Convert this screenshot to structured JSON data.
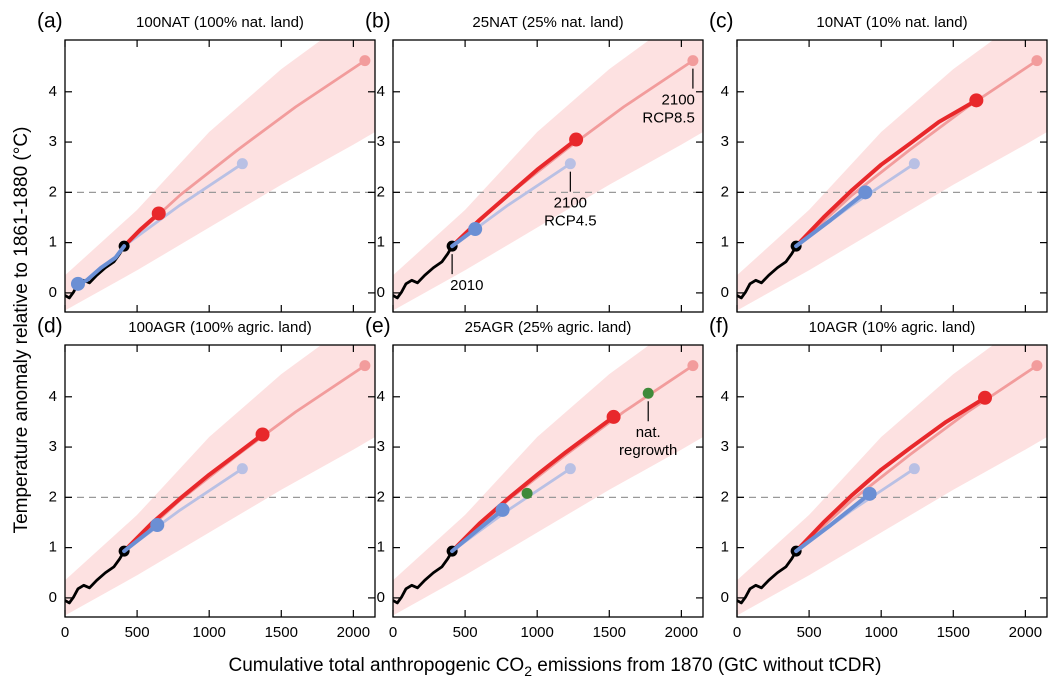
{
  "y_label": "Temperature anomaly relative to 1861-1880 (°C)",
  "x_label": {
    "before": "Cumulative total anthropogenic CO",
    "sub": "2",
    "after": " emissions from 1870 (GtC without tCDR)"
  },
  "chart_data": [
    {
      "type": "line",
      "panel_label": "(a)",
      "title": "100NAT (100% nat. land)",
      "xlim": [
        0,
        2150
      ],
      "ylim": [
        -0.38,
        5.03
      ],
      "xticks": [
        0,
        500,
        1000,
        1500,
        2000
      ],
      "yticks": [
        0,
        1,
        2,
        3,
        4
      ],
      "show_xtick_labels": false,
      "reference_line": 2,
      "band": {
        "color": "#fde1e1",
        "x": [
          0,
          500,
          1000,
          1500,
          2000,
          2150
        ],
        "lower": [
          -0.35,
          0.45,
          1.3,
          2.15,
          2.95,
          3.2
        ],
        "upper": [
          0.35,
          1.65,
          3.2,
          4.45,
          5.5,
          5.8
        ]
      },
      "series": [
        {
          "color": "#f29c9c",
          "weight": "normal",
          "marker": "end",
          "x": [
            410,
            800,
            1200,
            1600,
            2080
          ],
          "values": [
            0.93,
            1.95,
            2.85,
            3.7,
            4.62
          ]
        },
        {
          "color": "#b9c0e4",
          "weight": "normal",
          "marker": "end",
          "x": [
            410,
            800,
            1230
          ],
          "values": [
            0.93,
            1.75,
            2.57
          ]
        },
        {
          "color": "#e8282b",
          "weight": "bold",
          "marker": "end",
          "x": [
            410,
            520,
            650
          ],
          "values": [
            0.93,
            1.25,
            1.58
          ]
        },
        {
          "color": "#000000",
          "weight": "normal",
          "marker": "end",
          "x": [
            0,
            30,
            60,
            90,
            130,
            170,
            220,
            280,
            340,
            380,
            410
          ],
          "values": [
            -0.05,
            -0.1,
            0.02,
            0.18,
            0.25,
            0.2,
            0.35,
            0.5,
            0.62,
            0.78,
            0.93
          ]
        },
        {
          "color": "#6b8fd4",
          "weight": "bold",
          "marker": "end",
          "x": [
            410,
            350,
            300,
            250,
            150,
            90
          ],
          "values": [
            0.93,
            0.7,
            0.6,
            0.5,
            0.25,
            0.18
          ]
        }
      ],
      "annotations": []
    },
    {
      "type": "line",
      "panel_label": "(b)",
      "title": "25NAT (25% nat. land)",
      "xlim": [
        0,
        2150
      ],
      "ylim": [
        -0.38,
        5.03
      ],
      "xticks": [
        0,
        500,
        1000,
        1500,
        2000
      ],
      "yticks": [
        0,
        1,
        2,
        3,
        4
      ],
      "show_xtick_labels": false,
      "reference_line": 2,
      "band": {
        "color": "#fde1e1",
        "x": [
          0,
          500,
          1000,
          1500,
          2000,
          2150
        ],
        "lower": [
          -0.35,
          0.45,
          1.3,
          2.15,
          2.95,
          3.2
        ],
        "upper": [
          0.35,
          1.65,
          3.2,
          4.45,
          5.5,
          5.8
        ]
      },
      "series": [
        {
          "color": "#f29c9c",
          "weight": "normal",
          "marker": "end",
          "x": [
            410,
            800,
            1200,
            1600,
            2080
          ],
          "values": [
            0.93,
            1.95,
            2.85,
            3.7,
            4.62
          ]
        },
        {
          "color": "#b9c0e4",
          "weight": "normal",
          "marker": "end",
          "x": [
            410,
            800,
            1230
          ],
          "values": [
            0.93,
            1.75,
            2.57
          ]
        },
        {
          "color": "#e8282b",
          "weight": "bold",
          "marker": "end",
          "x": [
            410,
            600,
            800,
            1000,
            1270
          ],
          "values": [
            0.93,
            1.45,
            1.95,
            2.45,
            3.05
          ]
        },
        {
          "color": "#000000",
          "weight": "normal",
          "marker": "end",
          "x": [
            0,
            30,
            60,
            90,
            130,
            170,
            220,
            280,
            340,
            380,
            410
          ],
          "values": [
            -0.05,
            -0.1,
            0.02,
            0.18,
            0.25,
            0.2,
            0.35,
            0.5,
            0.62,
            0.78,
            0.93
          ]
        },
        {
          "color": "#6b8fd4",
          "weight": "bold",
          "marker": "end",
          "x": [
            410,
            570
          ],
          "values": [
            0.93,
            1.27
          ]
        }
      ],
      "annotations": [
        {
          "text": [
            "2010"
          ],
          "x": 410,
          "y": 0.93,
          "align": "start"
        },
        {
          "text": [
            "2100",
            "RCP4.5"
          ],
          "x": 1230,
          "y": 2.57,
          "align": "middle"
        },
        {
          "text": [
            "2100",
            "RCP8.5"
          ],
          "x": 2080,
          "y": 4.62,
          "align": "end"
        }
      ]
    },
    {
      "type": "line",
      "panel_label": "(c)",
      "title": "10NAT (10% nat. land)",
      "xlim": [
        0,
        2150
      ],
      "ylim": [
        -0.38,
        5.03
      ],
      "xticks": [
        0,
        500,
        1000,
        1500,
        2000
      ],
      "yticks": [
        0,
        1,
        2,
        3,
        4
      ],
      "show_xtick_labels": false,
      "reference_line": 2,
      "band": {
        "color": "#fde1e1",
        "x": [
          0,
          500,
          1000,
          1500,
          2000,
          2150
        ],
        "lower": [
          -0.35,
          0.45,
          1.3,
          2.15,
          2.95,
          3.2
        ],
        "upper": [
          0.35,
          1.65,
          3.2,
          4.45,
          5.5,
          5.8
        ]
      },
      "series": [
        {
          "color": "#f29c9c",
          "weight": "normal",
          "marker": "end",
          "x": [
            410,
            800,
            1200,
            1600,
            2080
          ],
          "values": [
            0.93,
            1.95,
            2.85,
            3.7,
            4.62
          ]
        },
        {
          "color": "#b9c0e4",
          "weight": "normal",
          "marker": "end",
          "x": [
            410,
            800,
            1230
          ],
          "values": [
            0.93,
            1.75,
            2.57
          ]
        },
        {
          "color": "#e8282b",
          "weight": "bold",
          "marker": "end",
          "x": [
            410,
            600,
            800,
            1000,
            1200,
            1400,
            1660
          ],
          "values": [
            0.93,
            1.5,
            2.05,
            2.55,
            2.97,
            3.4,
            3.83
          ]
        },
        {
          "color": "#000000",
          "weight": "normal",
          "marker": "end",
          "x": [
            0,
            30,
            60,
            90,
            130,
            170,
            220,
            280,
            340,
            380,
            410
          ],
          "values": [
            -0.05,
            -0.1,
            0.02,
            0.18,
            0.25,
            0.2,
            0.35,
            0.5,
            0.62,
            0.78,
            0.93
          ]
        },
        {
          "color": "#6b8fd4",
          "weight": "bold",
          "marker": "end",
          "x": [
            410,
            650,
            890
          ],
          "values": [
            0.93,
            1.45,
            2.0
          ]
        }
      ],
      "annotations": []
    },
    {
      "type": "line",
      "panel_label": "(d)",
      "title": "100AGR (100% agric. land)",
      "xlim": [
        0,
        2150
      ],
      "ylim": [
        -0.38,
        5.03
      ],
      "xticks": [
        0,
        500,
        1000,
        1500,
        2000
      ],
      "yticks": [
        0,
        1,
        2,
        3,
        4
      ],
      "show_xtick_labels": true,
      "reference_line": 2,
      "band": {
        "color": "#fde1e1",
        "x": [
          0,
          500,
          1000,
          1500,
          2000,
          2150
        ],
        "lower": [
          -0.35,
          0.45,
          1.3,
          2.15,
          2.95,
          3.2
        ],
        "upper": [
          0.35,
          1.65,
          3.2,
          4.45,
          5.5,
          5.8
        ]
      },
      "series": [
        {
          "color": "#f29c9c",
          "weight": "normal",
          "marker": "end",
          "x": [
            410,
            800,
            1200,
            1600,
            2080
          ],
          "values": [
            0.93,
            1.95,
            2.85,
            3.7,
            4.62
          ]
        },
        {
          "color": "#b9c0e4",
          "weight": "normal",
          "marker": "end",
          "x": [
            410,
            800,
            1230
          ],
          "values": [
            0.93,
            1.75,
            2.57
          ]
        },
        {
          "color": "#e8282b",
          "weight": "bold",
          "marker": "end",
          "x": [
            410,
            600,
            800,
            1000,
            1200,
            1370
          ],
          "values": [
            0.93,
            1.48,
            1.98,
            2.45,
            2.88,
            3.25
          ]
        },
        {
          "color": "#000000",
          "weight": "normal",
          "marker": "end",
          "x": [
            0,
            30,
            60,
            90,
            130,
            170,
            220,
            280,
            340,
            380,
            410
          ],
          "values": [
            -0.05,
            -0.1,
            0.02,
            0.18,
            0.25,
            0.2,
            0.35,
            0.5,
            0.62,
            0.78,
            0.93
          ]
        },
        {
          "color": "#6b8fd4",
          "weight": "bold",
          "marker": "end",
          "x": [
            410,
            640
          ],
          "values": [
            0.93,
            1.45
          ]
        }
      ],
      "annotations": []
    },
    {
      "type": "line",
      "panel_label": "(e)",
      "title": "25AGR (25% agric. land)",
      "xlim": [
        0,
        2150
      ],
      "ylim": [
        -0.38,
        5.03
      ],
      "xticks": [
        0,
        500,
        1000,
        1500,
        2000
      ],
      "yticks": [
        0,
        1,
        2,
        3,
        4
      ],
      "show_xtick_labels": true,
      "reference_line": 2,
      "band": {
        "color": "#fde1e1",
        "x": [
          0,
          500,
          1000,
          1500,
          2000,
          2150
        ],
        "lower": [
          -0.35,
          0.45,
          1.3,
          2.15,
          2.95,
          3.2
        ],
        "upper": [
          0.35,
          1.65,
          3.2,
          4.45,
          5.5,
          5.8
        ]
      },
      "series": [
        {
          "color": "#f29c9c",
          "weight": "normal",
          "marker": "end",
          "x": [
            410,
            800,
            1200,
            1600,
            2080
          ],
          "values": [
            0.93,
            1.95,
            2.85,
            3.7,
            4.62
          ]
        },
        {
          "color": "#b9c0e4",
          "weight": "normal",
          "marker": "end",
          "x": [
            410,
            800,
            1230
          ],
          "values": [
            0.93,
            1.75,
            2.57
          ]
        },
        {
          "color": "#e8282b",
          "weight": "bold",
          "marker": "end",
          "x": [
            410,
            600,
            800,
            1000,
            1200,
            1530
          ],
          "values": [
            0.93,
            1.48,
            1.98,
            2.45,
            2.9,
            3.6
          ]
        },
        {
          "color": "#000000",
          "weight": "normal",
          "marker": "end",
          "x": [
            0,
            30,
            60,
            90,
            130,
            170,
            220,
            280,
            340,
            380,
            410
          ],
          "values": [
            -0.05,
            -0.1,
            0.02,
            0.18,
            0.25,
            0.2,
            0.35,
            0.5,
            0.62,
            0.78,
            0.93
          ]
        },
        {
          "color": "#6b8fd4",
          "weight": "bold",
          "marker": "end",
          "x": [
            410,
            600,
            760
          ],
          "values": [
            0.93,
            1.38,
            1.75
          ]
        },
        {
          "color": "#3f8a3a",
          "weight": "normal",
          "marker": "points",
          "x": [
            930,
            1770
          ],
          "values": [
            2.08,
            4.07
          ]
        }
      ],
      "annotations": [
        {
          "text": [
            "nat.",
            "regrowth"
          ],
          "x": 1770,
          "y": 4.07,
          "align": "middle"
        }
      ]
    },
    {
      "type": "line",
      "panel_label": "(f)",
      "title": "10AGR (10% agric. land)",
      "xlim": [
        0,
        2150
      ],
      "ylim": [
        -0.38,
        5.03
      ],
      "xticks": [
        0,
        500,
        1000,
        1500,
        2000
      ],
      "yticks": [
        0,
        1,
        2,
        3,
        4
      ],
      "show_xtick_labels": true,
      "reference_line": 2,
      "band": {
        "color": "#fde1e1",
        "x": [
          0,
          500,
          1000,
          1500,
          2000,
          2150
        ],
        "lower": [
          -0.35,
          0.45,
          1.3,
          2.15,
          2.95,
          3.2
        ],
        "upper": [
          0.35,
          1.65,
          3.2,
          4.45,
          5.5,
          5.8
        ]
      },
      "series": [
        {
          "color": "#f29c9c",
          "weight": "normal",
          "marker": "end",
          "x": [
            410,
            800,
            1200,
            1600,
            2080
          ],
          "values": [
            0.93,
            1.95,
            2.85,
            3.7,
            4.62
          ]
        },
        {
          "color": "#b9c0e4",
          "weight": "normal",
          "marker": "end",
          "x": [
            410,
            800,
            1230
          ],
          "values": [
            0.93,
            1.75,
            2.57
          ]
        },
        {
          "color": "#e8282b",
          "weight": "bold",
          "marker": "end",
          "x": [
            410,
            600,
            800,
            1000,
            1200,
            1450,
            1720
          ],
          "values": [
            0.93,
            1.5,
            2.05,
            2.55,
            2.98,
            3.5,
            3.98
          ]
        },
        {
          "color": "#000000",
          "weight": "normal",
          "marker": "end",
          "x": [
            0,
            30,
            60,
            90,
            130,
            170,
            220,
            280,
            340,
            380,
            410
          ],
          "values": [
            -0.05,
            -0.1,
            0.02,
            0.18,
            0.25,
            0.2,
            0.35,
            0.5,
            0.62,
            0.78,
            0.93
          ]
        },
        {
          "color": "#6b8fd4",
          "weight": "bold",
          "marker": "end",
          "x": [
            410,
            650,
            920
          ],
          "values": [
            0.93,
            1.45,
            2.07
          ]
        }
      ],
      "annotations": []
    }
  ]
}
